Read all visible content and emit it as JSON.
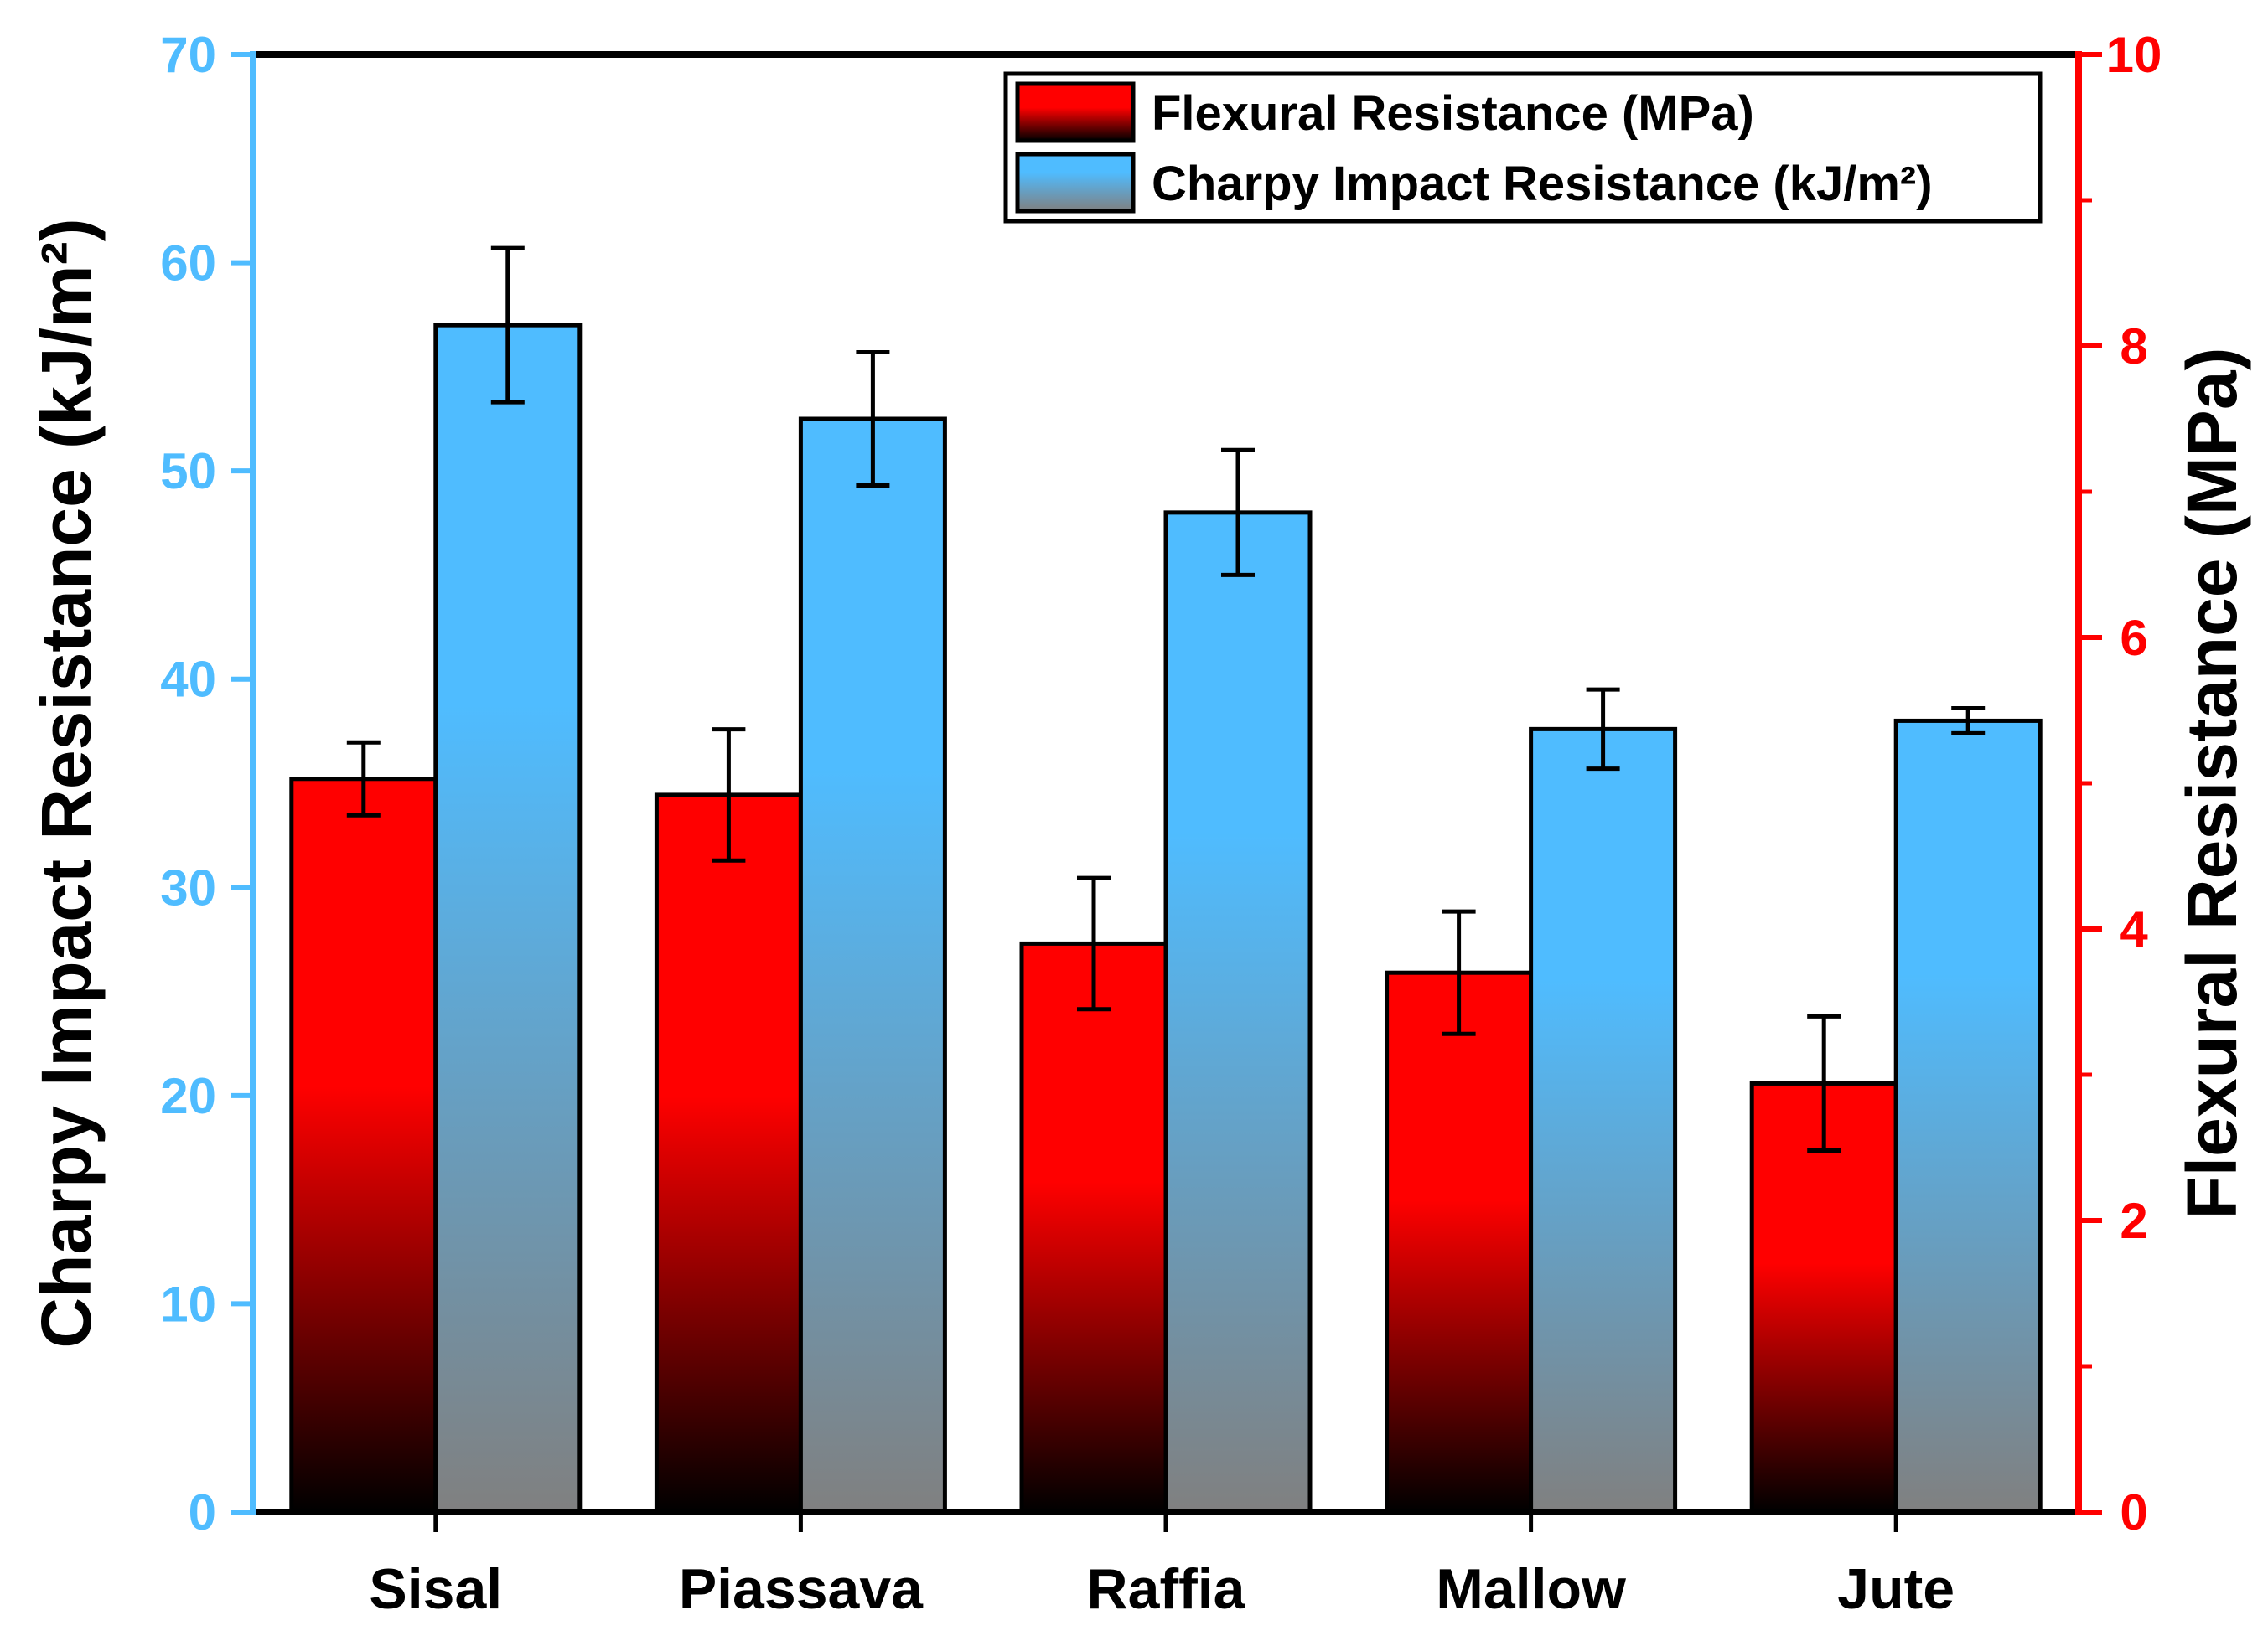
{
  "chart_data": {
    "type": "bar",
    "categories": [
      "Sisal",
      "Piassava",
      "Raffia",
      "Mallow",
      "Jute"
    ],
    "series": [
      {
        "name": "Flexural Resistance (MPa)",
        "axis": "right",
        "values": [
          5.03,
          4.92,
          3.9,
          3.7,
          2.94
        ],
        "errors": [
          0.25,
          0.45,
          0.45,
          0.42,
          0.46
        ],
        "color_top": "#ff0000",
        "color_bottom": "#000000"
      },
      {
        "name": "Charpy Impact Resistance (kJ/m²)",
        "axis": "left",
        "values": [
          57.0,
          52.5,
          48.0,
          37.6,
          38.0
        ],
        "errors": [
          3.7,
          3.2,
          3.0,
          1.9,
          0.6
        ],
        "color_top": "#4fbcff",
        "color_bottom": "#808080"
      }
    ],
    "y_left": {
      "label": "Charpy Impact Resistance (kJ/m²)",
      "range": [
        0,
        70
      ],
      "ticks": [
        0,
        10,
        20,
        30,
        40,
        50,
        60,
        70
      ],
      "color": "#4fbcff"
    },
    "y_right": {
      "label": "Flexural Resistance (MPa)",
      "range": [
        0,
        10
      ],
      "ticks": [
        0,
        2,
        4,
        6,
        8,
        10
      ],
      "minor_ticks": [
        1,
        3,
        5,
        7,
        9
      ],
      "color": "#ff0000"
    },
    "legend_position": "top-right",
    "grid": false
  }
}
